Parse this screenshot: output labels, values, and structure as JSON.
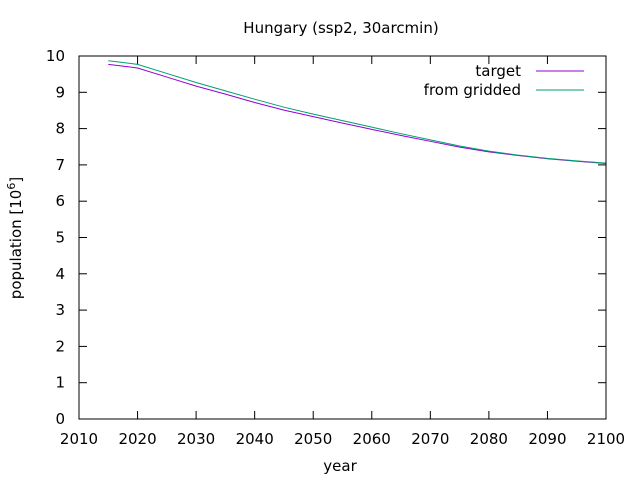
{
  "chart_data": {
    "type": "line",
    "title": "Hungary (ssp2, 30arcmin)",
    "xlabel": "year",
    "ylabel": "population [10",
    "ylabel_superscript": "6",
    "ylabel_suffix": "]",
    "xlim": [
      2010,
      2100
    ],
    "ylim": [
      0,
      10
    ],
    "xticks": [
      2010,
      2020,
      2030,
      2040,
      2050,
      2060,
      2070,
      2080,
      2090,
      2100
    ],
    "yticks": [
      0,
      1,
      2,
      3,
      4,
      5,
      6,
      7,
      8,
      9,
      10
    ],
    "grid": false,
    "legend_position": "top-right",
    "x": [
      2015,
      2020,
      2025,
      2030,
      2035,
      2040,
      2045,
      2050,
      2055,
      2060,
      2065,
      2070,
      2075,
      2080,
      2085,
      2090,
      2095,
      2100
    ],
    "series": [
      {
        "name": "target",
        "color": "#9400d3",
        "values": [
          9.77,
          9.67,
          9.42,
          9.17,
          8.95,
          8.72,
          8.51,
          8.33,
          8.15,
          7.98,
          7.81,
          7.65,
          7.49,
          7.36,
          7.26,
          7.17,
          7.1,
          7.04
        ]
      },
      {
        "name": "from gridded",
        "color": "#009e73",
        "values": [
          9.87,
          9.77,
          9.52,
          9.27,
          9.04,
          8.81,
          8.59,
          8.4,
          8.22,
          8.04,
          7.86,
          7.69,
          7.52,
          7.38,
          7.27,
          7.18,
          7.11,
          7.05
        ]
      }
    ]
  }
}
